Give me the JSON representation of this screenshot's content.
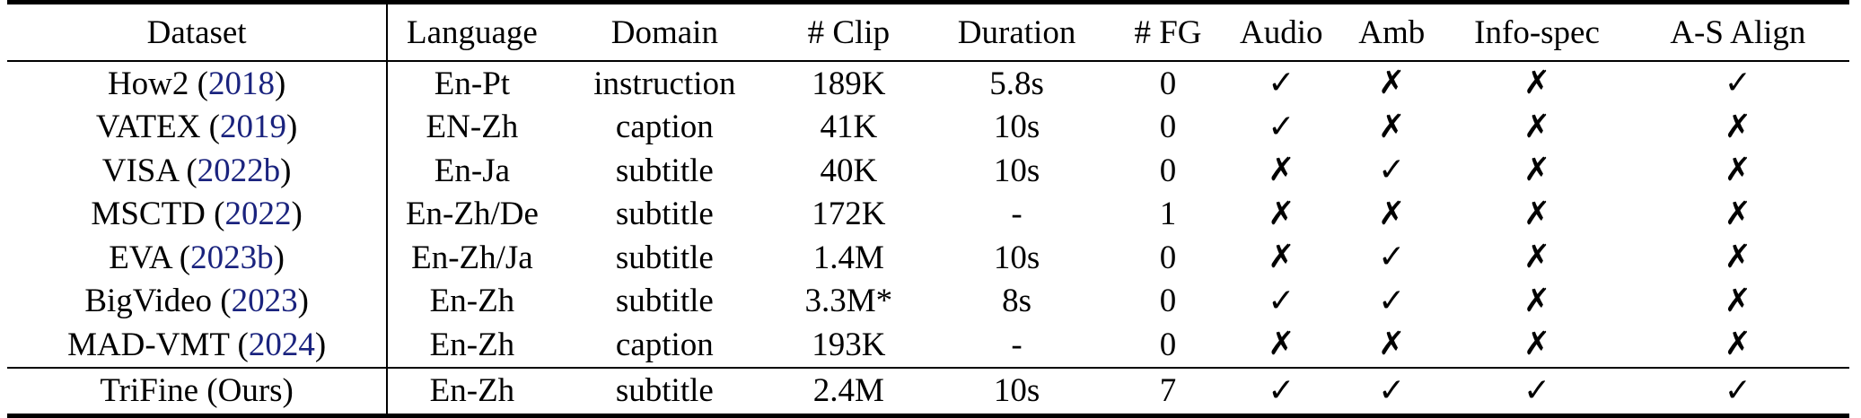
{
  "table": {
    "headers": [
      "Dataset",
      "Language",
      "Domain",
      "# Clip",
      "Duration",
      "# FG",
      "Audio",
      "Amb",
      "Info-spec",
      "A-S Align"
    ],
    "rows": [
      {
        "name": "How2",
        "cite": "2018",
        "language": "En-Pt",
        "domain": "instruction",
        "clip": "189K",
        "duration": "5.8s",
        "fg": "0",
        "audio": "✓",
        "amb": "✗",
        "info_spec": "✗",
        "as_align": "✓"
      },
      {
        "name": "VATEX",
        "cite": "2019",
        "language": "EN-Zh",
        "domain": "caption",
        "clip": "41K",
        "duration": "10s",
        "fg": "0",
        "audio": "✓",
        "amb": "✗",
        "info_spec": "✗",
        "as_align": "✗"
      },
      {
        "name": "VISA",
        "cite": "2022b",
        "language": "En-Ja",
        "domain": "subtitle",
        "clip": "40K",
        "duration": "10s",
        "fg": "0",
        "audio": "✗",
        "amb": "✓",
        "info_spec": "✗",
        "as_align": "✗"
      },
      {
        "name": "MSCTD",
        "cite": "2022",
        "language": "En-Zh/De",
        "domain": "subtitle",
        "clip": "172K",
        "duration": "-",
        "fg": "1",
        "audio": "✗",
        "amb": "✗",
        "info_spec": "✗",
        "as_align": "✗"
      },
      {
        "name": "EVA",
        "cite": "2023b",
        "language": "En-Zh/Ja",
        "domain": "subtitle",
        "clip": "1.4M",
        "duration": "10s",
        "fg": "0",
        "audio": "✗",
        "amb": "✓",
        "info_spec": "✗",
        "as_align": "✗"
      },
      {
        "name": "BigVideo",
        "cite": "2023",
        "language": "En-Zh",
        "domain": "subtitle",
        "clip": "3.3M*",
        "duration": "8s",
        "fg": "0",
        "audio": "✓",
        "amb": "✓",
        "info_spec": "✗",
        "as_align": "✗"
      },
      {
        "name": "MAD-VMT",
        "cite": "2024",
        "language": "En-Zh",
        "domain": "caption",
        "clip": "193K",
        "duration": "-",
        "fg": "0",
        "audio": "✗",
        "amb": "✗",
        "info_spec": "✗",
        "as_align": "✗"
      }
    ],
    "ours": {
      "name": "TriFine (Ours)",
      "language": "En-Zh",
      "domain": "subtitle",
      "clip": "2.4M",
      "duration": "10s",
      "fg": "7",
      "audio": "✓",
      "amb": "✓",
      "info_spec": "✓",
      "as_align": "✓"
    },
    "cite_color": "#1a237e"
  }
}
